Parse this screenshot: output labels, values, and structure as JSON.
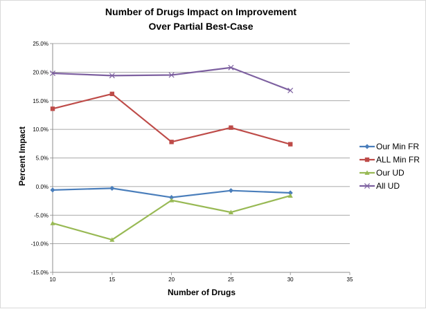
{
  "chart_data": {
    "type": "line",
    "title_lines": [
      "Number of Drugs Impact on Improvement",
      "Over Partial Best-Case"
    ],
    "xlabel": "Number of Drugs",
    "ylabel": "Percent Impact",
    "xlim": [
      10,
      35
    ],
    "xticks": [
      10,
      15,
      20,
      25,
      30,
      35
    ],
    "ylim": [
      -15,
      25
    ],
    "yticks": [
      -15,
      -10,
      -5,
      0,
      5,
      10,
      15,
      20,
      25
    ],
    "ytick_labels": [
      "-15.0%",
      "-10.0%",
      "-5.0%",
      "0.0%",
      "5.0%",
      "10.0%",
      "15.0%",
      "20.0%",
      "25.0%"
    ],
    "grid": "horizontal",
    "legend_position": "right",
    "x": [
      10,
      15,
      20,
      25,
      30
    ],
    "series": [
      {
        "name": "Our Min FR",
        "color": "#4a7ebb",
        "marker": "diamond",
        "values": [
          -0.6,
          -0.3,
          -1.9,
          -0.7,
          -1.1
        ]
      },
      {
        "name": "ALL Min FR",
        "color": "#be4b48",
        "marker": "square",
        "values": [
          13.6,
          16.2,
          7.8,
          10.3,
          7.4
        ]
      },
      {
        "name": "Our UD",
        "color": "#98b954",
        "marker": "triangle",
        "values": [
          -6.4,
          -9.3,
          -2.4,
          -4.5,
          -1.6
        ]
      },
      {
        "name": "All UD",
        "color": "#7d60a0",
        "marker": "x",
        "values": [
          19.8,
          19.4,
          19.5,
          20.8,
          16.8
        ]
      }
    ]
  }
}
